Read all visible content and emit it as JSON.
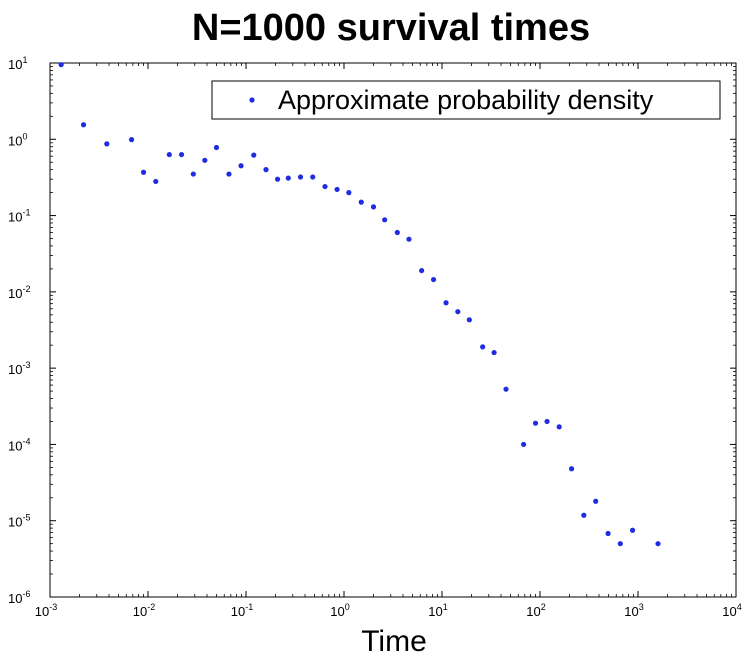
{
  "chart_data": {
    "type": "scatter",
    "title": "N=1000 survival times",
    "xlabel": "Time",
    "ylabel": "",
    "xscale": "log",
    "yscale": "log",
    "xlim": [
      0.001,
      10000
    ],
    "ylim": [
      1e-06,
      10
    ],
    "grid": false,
    "legend_placement": "top-right",
    "series": [
      {
        "name": "Approximate probability density",
        "color": "#1f2ce0",
        "marker": "dot",
        "x": [
          0.0013,
          0.0022,
          0.0038,
          0.0068,
          0.009,
          0.012,
          0.0165,
          0.022,
          0.029,
          0.038,
          0.05,
          0.067,
          0.089,
          0.12,
          0.16,
          0.21,
          0.27,
          0.36,
          0.48,
          0.64,
          0.85,
          1.12,
          1.5,
          2.0,
          2.6,
          3.5,
          4.6,
          6.2,
          8.2,
          11,
          14.5,
          19,
          26,
          34,
          45,
          68,
          90,
          118,
          157,
          210,
          280,
          370,
          495,
          660,
          880,
          1600
        ],
        "y": [
          9.5,
          1.55,
          0.87,
          0.99,
          0.37,
          0.28,
          0.63,
          0.63,
          0.35,
          0.53,
          0.78,
          0.35,
          0.45,
          0.62,
          0.4,
          0.3,
          0.31,
          0.32,
          0.32,
          0.24,
          0.22,
          0.2,
          0.15,
          0.13,
          0.088,
          0.06,
          0.049,
          0.019,
          0.0145,
          0.0072,
          0.0055,
          0.0043,
          0.0019,
          0.0016,
          0.00053,
          0.0001,
          0.00019,
          0.0002,
          0.00017,
          4.8e-05,
          1.18e-05,
          1.8e-05,
          6.8e-06,
          5e-06,
          7.5e-06,
          5e-06
        ]
      }
    ],
    "x_ticks": [
      {
        "base": "10",
        "exp": "-3"
      },
      {
        "base": "10",
        "exp": "-2"
      },
      {
        "base": "10",
        "exp": "-1"
      },
      {
        "base": "10",
        "exp": "0"
      },
      {
        "base": "10",
        "exp": "1"
      },
      {
        "base": "10",
        "exp": "2"
      },
      {
        "base": "10",
        "exp": "3"
      },
      {
        "base": "10",
        "exp": "4"
      }
    ],
    "y_ticks": [
      {
        "base": "10",
        "exp": "-6"
      },
      {
        "base": "10",
        "exp": "-5"
      },
      {
        "base": "10",
        "exp": "-4"
      },
      {
        "base": "10",
        "exp": "-3"
      },
      {
        "base": "10",
        "exp": "-2"
      },
      {
        "base": "10",
        "exp": "-1"
      },
      {
        "base": "10",
        "exp": "0"
      },
      {
        "base": "10",
        "exp": "1"
      }
    ]
  }
}
